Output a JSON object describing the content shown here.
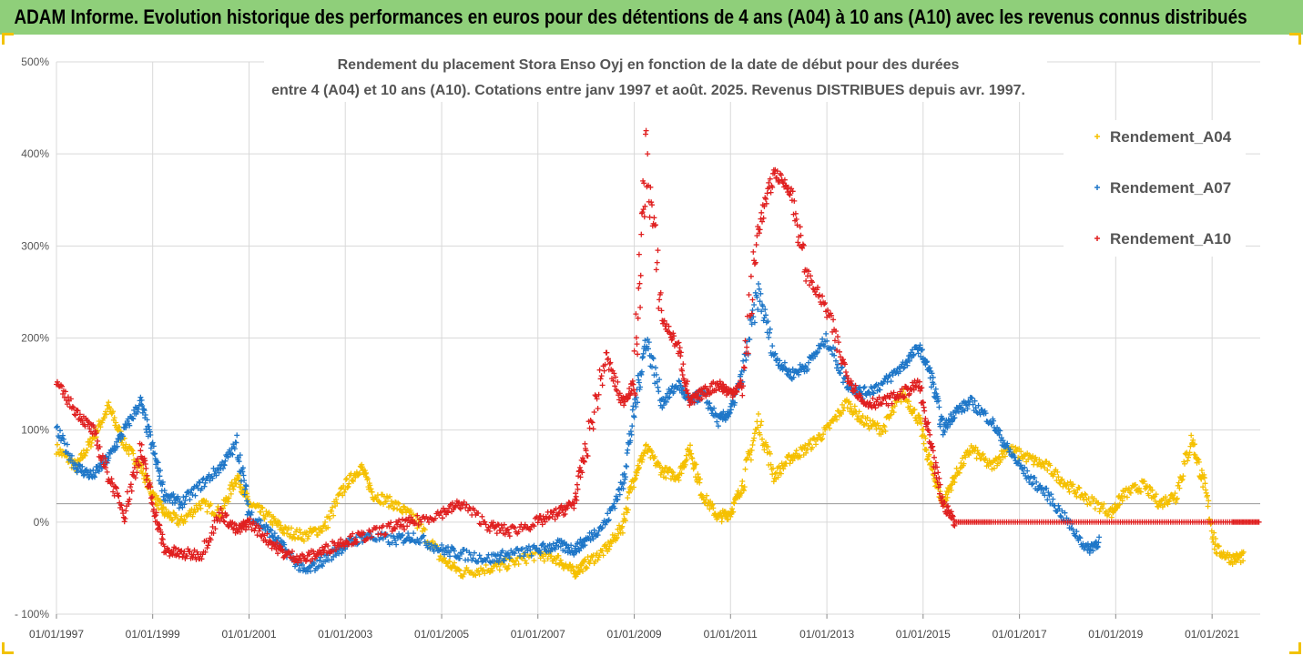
{
  "banner_title": "ADAM Informe. Evolution historique des performances en euros pour des détentions de 4 ans (A04) à 10 ans (A10) avec les revenus connus distribués",
  "chart_data": {
    "type": "scatter",
    "title_line1": "Rendement du placement Stora Enso Oyj en fonction de la date de début pour des durées",
    "title_line2": "entre 4 (A04) et 10 ans (A10). Cotations entre janv 1997 et août. 2025. Revenus DISTRIBUES depuis avr. 1997.",
    "xlabel": "",
    "ylabel": "",
    "x_ticks": [
      "01/01/1997",
      "01/01/1999",
      "01/01/2001",
      "01/01/2003",
      "01/01/2005",
      "01/01/2007",
      "01/01/2009",
      "01/01/2011",
      "01/01/2013",
      "01/01/2015",
      "01/01/2017",
      "01/01/2019",
      "01/01/2021"
    ],
    "y_ticks": [
      "500%",
      "400%",
      "300%",
      "200%",
      "100%",
      "0%",
      "- 100%"
    ],
    "ylim": [
      -100,
      500
    ],
    "xlim": [
      "1997-01-01",
      "2022-01-01"
    ],
    "reference_line": 20,
    "grid": true,
    "legend_position": "right",
    "series": [
      {
        "name": "Rendement_A04",
        "color": "#f5c000",
        "marker": "+",
        "points": [
          [
            "1997-01",
            80
          ],
          [
            "1997-06",
            60
          ],
          [
            "1997-10",
            90
          ],
          [
            "1998-02",
            125
          ],
          [
            "1998-06",
            85
          ],
          [
            "1998-10",
            60
          ],
          [
            "1999-01",
            30
          ],
          [
            "1999-04",
            10
          ],
          [
            "1999-08",
            0
          ],
          [
            "2000-01",
            20
          ],
          [
            "2000-06",
            10
          ],
          [
            "2000-10",
            50
          ],
          [
            "2001-01",
            20
          ],
          [
            "2001-06",
            5
          ],
          [
            "2001-10",
            -10
          ],
          [
            "2002-03",
            -15
          ],
          [
            "2002-08",
            -5
          ],
          [
            "2003-01",
            40
          ],
          [
            "2003-05",
            60
          ],
          [
            "2003-08",
            30
          ],
          [
            "2004-01",
            20
          ],
          [
            "2004-06",
            5
          ],
          [
            "2005-01",
            -40
          ],
          [
            "2005-06",
            -55
          ],
          [
            "2006-01",
            -50
          ],
          [
            "2006-06",
            -45
          ],
          [
            "2007-01",
            -35
          ],
          [
            "2007-06",
            -40
          ],
          [
            "2007-10",
            -55
          ],
          [
            "2008-01",
            -45
          ],
          [
            "2008-06",
            -30
          ],
          [
            "2008-10",
            -5
          ],
          [
            "2009-01",
            50
          ],
          [
            "2009-04",
            80
          ],
          [
            "2009-08",
            55
          ],
          [
            "2009-12",
            50
          ],
          [
            "2010-03",
            80
          ],
          [
            "2010-06",
            30
          ],
          [
            "2010-10",
            5
          ],
          [
            "2011-01",
            10
          ],
          [
            "2011-04",
            40
          ],
          [
            "2011-08",
            110
          ],
          [
            "2011-12",
            50
          ],
          [
            "2012-04",
            70
          ],
          [
            "2012-08",
            80
          ],
          [
            "2013-01",
            100
          ],
          [
            "2013-06",
            130
          ],
          [
            "2013-10",
            110
          ],
          [
            "2014-03",
            100
          ],
          [
            "2014-08",
            140
          ],
          [
            "2014-12",
            110
          ],
          [
            "2015-03",
            60
          ],
          [
            "2015-06",
            20
          ],
          [
            "2015-09",
            50
          ],
          [
            "2016-01",
            80
          ],
          [
            "2016-06",
            60
          ],
          [
            "2016-10",
            80
          ],
          [
            "2017-03",
            70
          ],
          [
            "2017-08",
            60
          ],
          [
            "2018-01",
            40
          ],
          [
            "2018-06",
            25
          ],
          [
            "2018-12",
            10
          ],
          [
            "2019-03",
            30
          ],
          [
            "2019-08",
            40
          ],
          [
            "2019-12",
            20
          ],
          [
            "2020-04",
            30
          ],
          [
            "2020-08",
            90
          ],
          [
            "2020-11",
            40
          ],
          [
            "2021-02",
            -30
          ],
          [
            "2021-06",
            -40
          ],
          [
            "2021-09",
            -38
          ]
        ]
      },
      {
        "name": "Rendement_A07",
        "color": "#1f77c8",
        "marker": "+",
        "points": [
          [
            "1997-01",
            100
          ],
          [
            "1997-06",
            60
          ],
          [
            "1997-10",
            50
          ],
          [
            "1998-02",
            70
          ],
          [
            "1998-06",
            100
          ],
          [
            "1998-10",
            130
          ],
          [
            "1999-01",
            80
          ],
          [
            "1999-04",
            30
          ],
          [
            "1999-08",
            20
          ],
          [
            "2000-01",
            40
          ],
          [
            "2000-06",
            60
          ],
          [
            "2000-10",
            85
          ],
          [
            "2001-01",
            10
          ],
          [
            "2001-06",
            -10
          ],
          [
            "2001-10",
            -30
          ],
          [
            "2002-03",
            -55
          ],
          [
            "2002-08",
            -40
          ],
          [
            "2003-01",
            -25
          ],
          [
            "2003-06",
            -15
          ],
          [
            "2004-01",
            -20
          ],
          [
            "2004-06",
            -15
          ],
          [
            "2005-01",
            -30
          ],
          [
            "2005-06",
            -35
          ],
          [
            "2006-01",
            -40
          ],
          [
            "2006-06",
            -35
          ],
          [
            "2007-01",
            -30
          ],
          [
            "2007-06",
            -25
          ],
          [
            "2007-10",
            -30
          ],
          [
            "2008-01",
            -20
          ],
          [
            "2008-06",
            0
          ],
          [
            "2008-10",
            40
          ],
          [
            "2009-01",
            120
          ],
          [
            "2009-04",
            200
          ],
          [
            "2009-08",
            130
          ],
          [
            "2009-12",
            150
          ],
          [
            "2010-03",
            130
          ],
          [
            "2010-06",
            140
          ],
          [
            "2010-10",
            110
          ],
          [
            "2011-01",
            120
          ],
          [
            "2011-04",
            160
          ],
          [
            "2011-08",
            250
          ],
          [
            "2011-12",
            180
          ],
          [
            "2012-04",
            160
          ],
          [
            "2012-08",
            170
          ],
          [
            "2013-01",
            200
          ],
          [
            "2013-06",
            150
          ],
          [
            "2013-10",
            140
          ],
          [
            "2014-03",
            150
          ],
          [
            "2014-08",
            170
          ],
          [
            "2014-12",
            190
          ],
          [
            "2015-03",
            160
          ],
          [
            "2015-06",
            100
          ],
          [
            "2015-09",
            120
          ],
          [
            "2016-01",
            130
          ],
          [
            "2016-06",
            110
          ],
          [
            "2016-10",
            80
          ],
          [
            "2017-03",
            50
          ],
          [
            "2017-08",
            30
          ],
          [
            "2018-01",
            0
          ],
          [
            "2018-06",
            -30
          ],
          [
            "2018-09",
            -20
          ]
        ]
      },
      {
        "name": "Rendement_A10",
        "color": "#e02020",
        "marker": "+",
        "points": [
          [
            "1997-01",
            150
          ],
          [
            "1997-06",
            120
          ],
          [
            "1997-10",
            100
          ],
          [
            "1998-02",
            50
          ],
          [
            "1998-06",
            10
          ],
          [
            "1998-10",
            80
          ],
          [
            "1999-01",
            20
          ],
          [
            "1999-04",
            -30
          ],
          [
            "1999-08",
            -35
          ],
          [
            "2000-01",
            -35
          ],
          [
            "2000-06",
            10
          ],
          [
            "2000-10",
            -10
          ],
          [
            "2001-01",
            0
          ],
          [
            "2001-06",
            -20
          ],
          [
            "2001-10",
            -35
          ],
          [
            "2002-03",
            -40
          ],
          [
            "2002-08",
            -30
          ],
          [
            "2003-01",
            -20
          ],
          [
            "2003-06",
            -15
          ],
          [
            "2004-01",
            -5
          ],
          [
            "2004-06",
            0
          ],
          [
            "2005-01",
            10
          ],
          [
            "2005-06",
            20
          ],
          [
            "2006-01",
            -5
          ],
          [
            "2006-06",
            -10
          ],
          [
            "2007-01",
            0
          ],
          [
            "2007-06",
            10
          ],
          [
            "2007-10",
            20
          ],
          [
            "2008-01",
            80
          ],
          [
            "2008-06",
            180
          ],
          [
            "2008-10",
            130
          ],
          [
            "2009-01",
            150
          ],
          [
            "2009-04",
            400
          ],
          [
            "2009-08",
            220
          ],
          [
            "2009-12",
            190
          ],
          [
            "2010-03",
            130
          ],
          [
            "2010-06",
            140
          ],
          [
            "2010-10",
            150
          ],
          [
            "2011-01",
            140
          ],
          [
            "2011-04",
            150
          ],
          [
            "2011-08",
            320
          ],
          [
            "2011-12",
            380
          ],
          [
            "2012-04",
            360
          ],
          [
            "2012-08",
            270
          ],
          [
            "2013-01",
            230
          ],
          [
            "2013-06",
            160
          ],
          [
            "2013-10",
            130
          ],
          [
            "2014-03",
            130
          ],
          [
            "2014-08",
            140
          ],
          [
            "2014-12",
            150
          ],
          [
            "2015-03",
            80
          ],
          [
            "2015-06",
            20
          ],
          [
            "2015-09",
            0
          ],
          [
            "2016-06",
            0
          ],
          [
            "2017-06",
            0
          ],
          [
            "2018-06",
            0
          ],
          [
            "2019-06",
            0
          ],
          [
            "2020-06",
            0
          ],
          [
            "2021-06",
            0
          ],
          [
            "2022-01",
            0
          ]
        ]
      }
    ]
  }
}
